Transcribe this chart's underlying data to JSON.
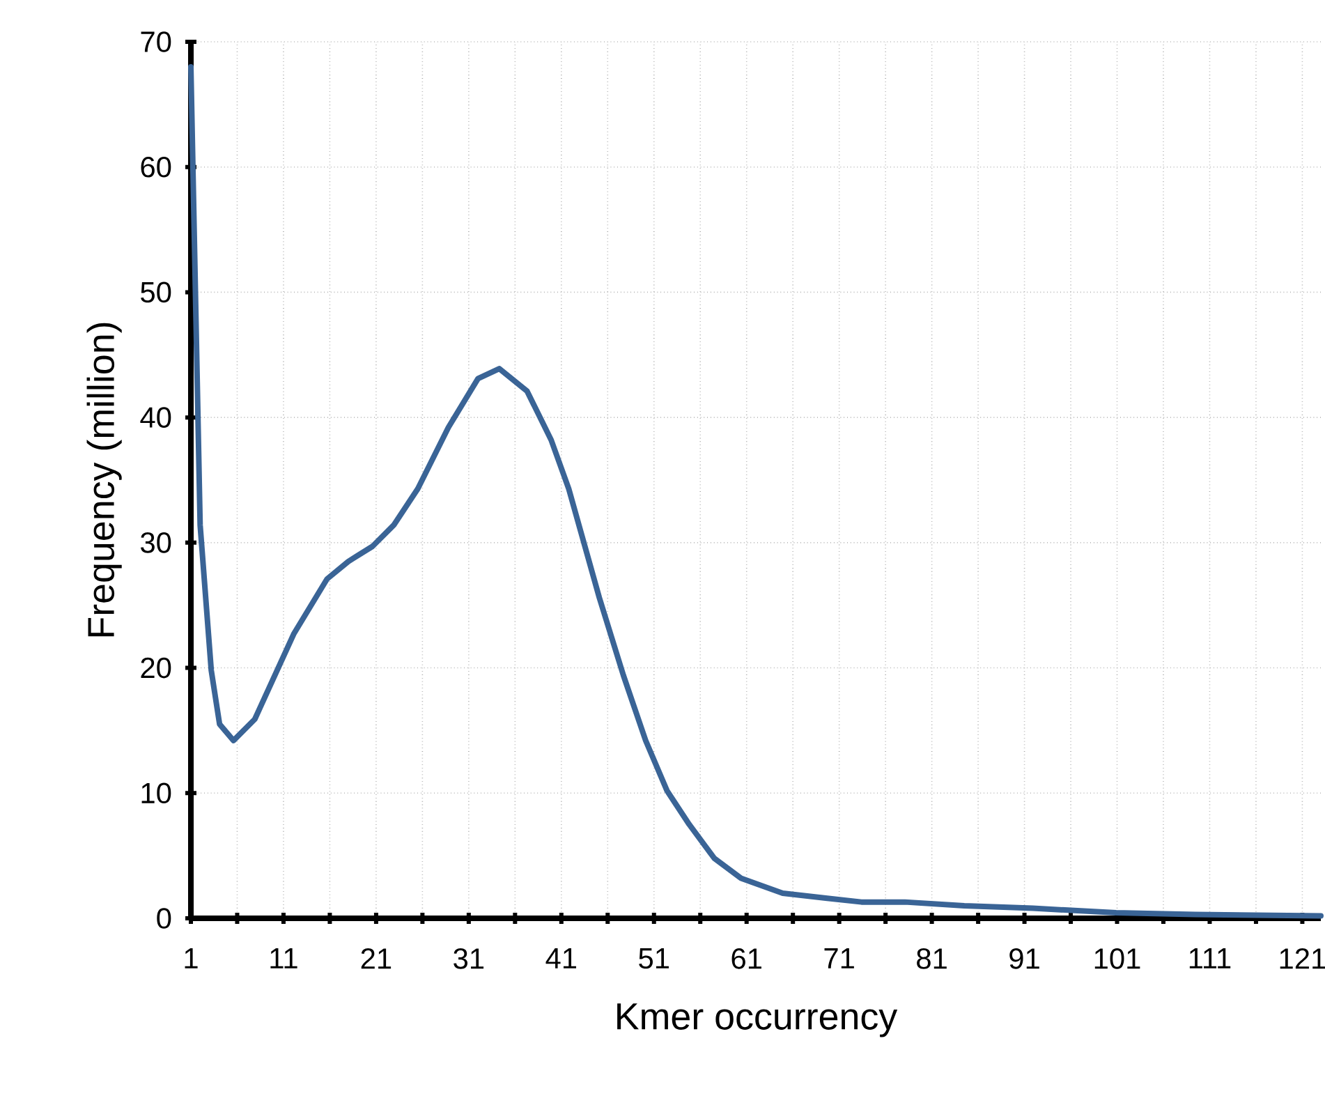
{
  "chart_data": {
    "type": "line",
    "xlabel": "Kmer occurrency",
    "ylabel": "Frequency (million)",
    "xlim": [
      1,
      123
    ],
    "ylim": [
      0,
      70
    ],
    "xticks": [
      1,
      {
        "value": 6,
        "label": null
      },
      11,
      {
        "value": 16,
        "label": null
      },
      21,
      {
        "value": 26,
        "label": null
      },
      31,
      {
        "value": 36,
        "label": null
      },
      41,
      {
        "value": 46,
        "label": null
      },
      51,
      {
        "value": 56,
        "label": null
      },
      61,
      {
        "value": 66,
        "label": null
      },
      71,
      {
        "value": 76,
        "label": null
      },
      81,
      {
        "value": 86,
        "label": null
      },
      91,
      {
        "value": 96,
        "label": null
      },
      101,
      {
        "value": 106,
        "label": null
      },
      111,
      {
        "value": 116,
        "label": null
      },
      121
    ],
    "yticks": [
      0,
      10,
      20,
      30,
      40,
      50,
      60,
      70
    ],
    "grid": true,
    "line_style": "solid",
    "series": [
      {
        "color": "#3a6496",
        "x": [
          1,
          2,
          3.2,
          4.1,
          5.6,
          7.9,
          12.1,
          15.7,
          18,
          20.6,
          22.9,
          25.5,
          28.8,
          32,
          34.3,
          37.3,
          39.9,
          41.8,
          45.1,
          47.7,
          50.1,
          52.4,
          54.8,
          57.5,
          60.4,
          64.9,
          69.7,
          73.4,
          78.1,
          84.5,
          91.9,
          100.9,
          109.4,
          123
        ],
        "values": [
          68,
          31.4,
          19.8,
          15.5,
          14.2,
          15.9,
          22.7,
          27.1,
          28.5,
          29.7,
          31.4,
          34.3,
          39.2,
          43.1,
          43.9,
          42.1,
          38.2,
          34.3,
          25.6,
          19.4,
          14.2,
          10.2,
          7.5,
          4.8,
          3.2,
          2.0,
          1.6,
          1.3,
          1.3,
          1.0,
          0.8,
          0.45,
          0.3,
          0.2
        ]
      }
    ]
  }
}
